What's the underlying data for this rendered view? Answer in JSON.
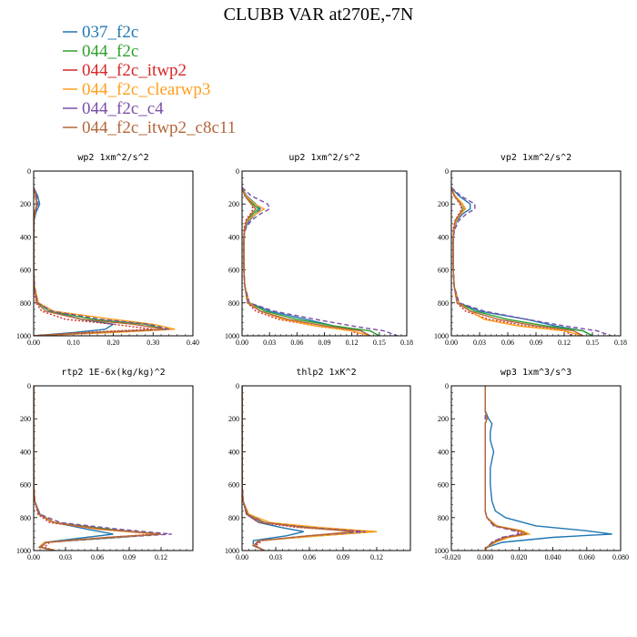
{
  "title": "CLUBB VAR at270E,-7N",
  "legend": [
    {
      "label": "037_f2c",
      "color": "#1f77b4",
      "dash": "solid"
    },
    {
      "label": "044_f2c",
      "color": "#2ca02c",
      "dash": "solid"
    },
    {
      "label": "044_f2c_itwp2",
      "color": "#d62728",
      "dash": "dotted"
    },
    {
      "label": "044_f2c_clearwp3",
      "color": "#ff9f1c",
      "dash": "solid"
    },
    {
      "label": "044_f2c_c4",
      "color": "#7b4fa8",
      "dash": "dashed"
    },
    {
      "label": "044_f2c_itwp2_c8c11",
      "color": "#b5663a",
      "dash": "solid"
    }
  ],
  "chart_data": [
    {
      "type": "line",
      "title": "wp2  1xm^2/s^2",
      "xlim": [
        0,
        0.4
      ],
      "ylim": [
        0,
        1000
      ],
      "y_inverted": true,
      "xticks": [
        "0.00",
        "0.10",
        "0.20",
        "0.30",
        "0.40"
      ],
      "yticks": [
        "0",
        "200",
        "400",
        "600",
        "800",
        "1000"
      ],
      "y": [
        100,
        150,
        200,
        250,
        300,
        400,
        500,
        600,
        700,
        800,
        850,
        900,
        930,
        960,
        980,
        1000
      ],
      "series": [
        {
          "name": "037_f2c",
          "x": [
            0,
            0.01,
            0.015,
            0.006,
            0.001,
            0,
            0,
            0,
            0.002,
            0.01,
            0.04,
            0.12,
            0.2,
            0.18,
            0.1,
            0
          ]
        },
        {
          "name": "044_f2c",
          "x": [
            0,
            0.006,
            0.009,
            0.004,
            0.001,
            0,
            0,
            0,
            0.002,
            0.01,
            0.04,
            0.15,
            0.28,
            0.33,
            0.15,
            0
          ]
        },
        {
          "name": "044_f2c_itwp2",
          "x": [
            0,
            0.004,
            0.007,
            0.003,
            0.001,
            0,
            0,
            0,
            0.001,
            0.006,
            0.02,
            0.08,
            0.2,
            0.3,
            0.12,
            0
          ]
        },
        {
          "name": "044_f2c_clearwp3",
          "x": [
            0,
            0.005,
            0.008,
            0.003,
            0.001,
            0,
            0,
            0,
            0.002,
            0.012,
            0.05,
            0.2,
            0.3,
            0.355,
            0.2,
            0
          ]
        },
        {
          "name": "044_f2c_c4",
          "x": [
            0,
            0.008,
            0.011,
            0.004,
            0.001,
            0,
            0,
            0,
            0.002,
            0.01,
            0.045,
            0.17,
            0.29,
            0.34,
            0.16,
            0
          ]
        },
        {
          "name": "044_f2c_itwp2_c8c11",
          "x": [
            0,
            0.005,
            0.008,
            0.003,
            0.001,
            0,
            0,
            0,
            0.001,
            0.008,
            0.03,
            0.12,
            0.25,
            0.33,
            0.14,
            0
          ]
        }
      ]
    },
    {
      "type": "line",
      "title": "up2  1xm^2/s^2",
      "xlim": [
        0,
        0.18
      ],
      "ylim": [
        0,
        1000
      ],
      "y_inverted": true,
      "xticks": [
        "0.00",
        "0.03",
        "0.06",
        "0.09",
        "0.12",
        "0.15",
        "0.18"
      ],
      "yticks": [
        "0",
        "200",
        "400",
        "600",
        "800",
        "1000"
      ],
      "y": [
        100,
        150,
        200,
        230,
        260,
        300,
        350,
        400,
        500,
        600,
        700,
        800,
        850,
        900,
        940,
        970,
        1000
      ],
      "series": [
        {
          "name": "037_f2c",
          "x": [
            0,
            0.005,
            0.015,
            0.02,
            0.015,
            0.008,
            0.003,
            0.002,
            0.002,
            0.002,
            0.003,
            0.008,
            0.03,
            0.07,
            0.1,
            0.13,
            0.14
          ]
        },
        {
          "name": "044_f2c",
          "x": [
            0,
            0.004,
            0.012,
            0.018,
            0.012,
            0.006,
            0.003,
            0.002,
            0.002,
            0.002,
            0.003,
            0.008,
            0.025,
            0.06,
            0.1,
            0.14,
            0.15
          ]
        },
        {
          "name": "044_f2c_itwp2",
          "x": [
            0,
            0.003,
            0.01,
            0.012,
            0.009,
            0.004,
            0.002,
            0.002,
            0.002,
            0.002,
            0.003,
            0.006,
            0.015,
            0.04,
            0.08,
            0.12,
            0.13
          ]
        },
        {
          "name": "044_f2c_clearwp3",
          "x": [
            0,
            0.004,
            0.014,
            0.024,
            0.015,
            0.006,
            0.003,
            0.002,
            0.002,
            0.002,
            0.003,
            0.008,
            0.02,
            0.045,
            0.08,
            0.12,
            0.14
          ]
        },
        {
          "name": "044_f2c_c4",
          "x": [
            0,
            0.01,
            0.028,
            0.03,
            0.02,
            0.01,
            0.004,
            0.002,
            0.002,
            0.002,
            0.003,
            0.008,
            0.035,
            0.08,
            0.12,
            0.155,
            0.17
          ]
        },
        {
          "name": "044_f2c_itwp2_c8c11",
          "x": [
            0,
            0.003,
            0.01,
            0.015,
            0.01,
            0.005,
            0.003,
            0.002,
            0.002,
            0.002,
            0.003,
            0.006,
            0.02,
            0.05,
            0.09,
            0.13,
            0.14
          ]
        }
      ]
    },
    {
      "type": "line",
      "title": "vp2  1xm^2/s^2",
      "xlim": [
        0,
        0.18
      ],
      "ylim": [
        0,
        1000
      ],
      "y_inverted": true,
      "xticks": [
        "0.00",
        "0.03",
        "0.06",
        "0.09",
        "0.12",
        "0.15",
        "0.18"
      ],
      "yticks": [
        "0",
        "200",
        "400",
        "600",
        "800",
        "1000"
      ],
      "y": [
        100,
        150,
        200,
        230,
        260,
        300,
        350,
        400,
        500,
        600,
        700,
        800,
        850,
        900,
        940,
        970,
        1000
      ],
      "series": [
        {
          "name": "037_f2c",
          "x": [
            0,
            0.008,
            0.02,
            0.02,
            0.012,
            0.006,
            0.003,
            0.002,
            0.002,
            0.002,
            0.003,
            0.008,
            0.03,
            0.08,
            0.11,
            0.14,
            0.15
          ]
        },
        {
          "name": "044_f2c",
          "x": [
            0,
            0.004,
            0.012,
            0.014,
            0.01,
            0.005,
            0.003,
            0.002,
            0.002,
            0.002,
            0.003,
            0.008,
            0.025,
            0.06,
            0.1,
            0.14,
            0.15
          ]
        },
        {
          "name": "044_f2c_itwp2",
          "x": [
            0,
            0.003,
            0.009,
            0.011,
            0.008,
            0.004,
            0.002,
            0.002,
            0.002,
            0.002,
            0.003,
            0.006,
            0.015,
            0.04,
            0.08,
            0.12,
            0.13
          ]
        },
        {
          "name": "044_f2c_clearwp3",
          "x": [
            0,
            0.004,
            0.012,
            0.015,
            0.01,
            0.005,
            0.003,
            0.002,
            0.002,
            0.002,
            0.003,
            0.008,
            0.02,
            0.035,
            0.07,
            0.12,
            0.14
          ]
        },
        {
          "name": "044_f2c_c4",
          "x": [
            0,
            0.01,
            0.025,
            0.025,
            0.016,
            0.008,
            0.004,
            0.002,
            0.002,
            0.002,
            0.003,
            0.008,
            0.035,
            0.08,
            0.12,
            0.155,
            0.17
          ]
        },
        {
          "name": "044_f2c_itwp2_c8c11",
          "x": [
            0,
            0.003,
            0.01,
            0.012,
            0.009,
            0.004,
            0.003,
            0.002,
            0.002,
            0.002,
            0.003,
            0.006,
            0.02,
            0.05,
            0.09,
            0.13,
            0.14
          ]
        }
      ]
    },
    {
      "type": "line",
      "title": "rtp2  1E-6x(kg/kg)^2",
      "xlim": [
        0,
        0.15
      ],
      "ylim": [
        0,
        1000
      ],
      "y_inverted": true,
      "xticks": [
        "0.00",
        "0.03",
        "0.06",
        "0.09",
        "0.12"
      ],
      "yticks": [
        "0",
        "200",
        "400",
        "600",
        "800",
        "1000"
      ],
      "y": [
        0,
        200,
        400,
        600,
        700,
        780,
        830,
        870,
        900,
        920,
        950,
        980,
        1000
      ],
      "series": [
        {
          "name": "037_f2c",
          "x": [
            0,
            0,
            0,
            0,
            0.001,
            0.006,
            0.02,
            0.05,
            0.075,
            0.05,
            0.01,
            0.007,
            0.02
          ]
        },
        {
          "name": "044_f2c",
          "x": [
            0,
            0,
            0,
            0,
            0.001,
            0.005,
            0.02,
            0.07,
            0.12,
            0.08,
            0.01,
            0.005,
            0.02
          ]
        },
        {
          "name": "044_f2c_itwp2",
          "x": [
            0,
            0,
            0,
            0,
            0.001,
            0.004,
            0.015,
            0.06,
            0.115,
            0.07,
            0.015,
            0.01,
            0.02
          ]
        },
        {
          "name": "044_f2c_clearwp3",
          "x": [
            0,
            0,
            0,
            0,
            0.001,
            0.005,
            0.02,
            0.06,
            0.12,
            0.07,
            0.01,
            0.005,
            0.02
          ]
        },
        {
          "name": "044_f2c_c4",
          "x": [
            0,
            0,
            0,
            0,
            0.001,
            0.006,
            0.025,
            0.08,
            0.13,
            0.08,
            0.012,
            0.006,
            0.02
          ]
        },
        {
          "name": "044_f2c_itwp2_c8c11",
          "x": [
            0,
            0,
            0,
            0,
            0.001,
            0.005,
            0.018,
            0.065,
            0.12,
            0.07,
            0.012,
            0.007,
            0.02
          ]
        }
      ]
    },
    {
      "type": "line",
      "title": "thlp2  1xK^2",
      "xlim": [
        0,
        0.15
      ],
      "ylim": [
        0,
        1000
      ],
      "y_inverted": true,
      "xticks": [
        "0.00",
        "0.03",
        "0.06",
        "0.09",
        "0.12"
      ],
      "yticks": [
        "0",
        "200",
        "400",
        "600",
        "800",
        "1000"
      ],
      "y": [
        0,
        200,
        400,
        600,
        700,
        780,
        830,
        860,
        885,
        910,
        940,
        970,
        1000
      ],
      "series": [
        {
          "name": "037_f2c",
          "x": [
            0,
            0,
            0,
            0,
            0.001,
            0.004,
            0.015,
            0.035,
            0.055,
            0.04,
            0.01,
            0.01,
            0.02
          ]
        },
        {
          "name": "044_f2c",
          "x": [
            0,
            0,
            0,
            0,
            0.001,
            0.005,
            0.02,
            0.06,
            0.12,
            0.07,
            0.015,
            0.01,
            0.02
          ]
        },
        {
          "name": "044_f2c_itwp2",
          "x": [
            0,
            0,
            0,
            0,
            0.001,
            0.004,
            0.015,
            0.05,
            0.11,
            0.06,
            0.018,
            0.012,
            0.02
          ]
        },
        {
          "name": "044_f2c_clearwp3",
          "x": [
            0,
            0,
            0,
            0,
            0.001,
            0.006,
            0.025,
            0.07,
            0.12,
            0.07,
            0.015,
            0.01,
            0.02
          ]
        },
        {
          "name": "044_f2c_c4",
          "x": [
            0,
            0,
            0,
            0,
            0.001,
            0.005,
            0.02,
            0.06,
            0.11,
            0.06,
            0.015,
            0.01,
            0.02
          ]
        },
        {
          "name": "044_f2c_itwp2_c8c11",
          "x": [
            0,
            0,
            0,
            0,
            0.001,
            0.005,
            0.018,
            0.055,
            0.1,
            0.06,
            0.016,
            0.011,
            0.02
          ]
        }
      ]
    },
    {
      "type": "line",
      "title": "wp3  1xm^3/s^3",
      "xlim": [
        -0.02,
        0.08
      ],
      "ylim": [
        0,
        1000
      ],
      "y_inverted": true,
      "xticks": [
        "-0.020",
        "0.000",
        "0.020",
        "0.040",
        "0.060",
        "0.080"
      ],
      "yticks": [
        "0",
        "200",
        "400",
        "600",
        "800",
        "1000"
      ],
      "y": [
        0,
        150,
        200,
        230,
        280,
        330,
        400,
        450,
        500,
        600,
        700,
        760,
        800,
        850,
        880,
        900,
        920,
        950,
        980,
        1000
      ],
      "series": [
        {
          "name": "037_f2c",
          "x": [
            0,
            0,
            0.002,
            0.004,
            0.003,
            0.003,
            0.005,
            0.004,
            0.003,
            0.003,
            0.004,
            0.006,
            0.012,
            0.03,
            0.06,
            0.075,
            0.04,
            0.01,
            0.001,
            0
          ]
        },
        {
          "name": "044_f2c",
          "x": [
            0,
            0,
            0.001,
            0,
            0,
            0,
            0,
            0,
            0,
            0,
            0,
            0,
            0.001,
            0.006,
            0.02,
            0.025,
            0.012,
            0.005,
            0.001,
            0
          ]
        },
        {
          "name": "044_f2c_itwp2",
          "x": [
            0,
            0,
            0.001,
            0,
            0,
            0,
            0,
            0,
            0,
            0,
            0,
            0,
            0.001,
            0.005,
            0.018,
            0.022,
            0.01,
            0.004,
            0.001,
            0
          ]
        },
        {
          "name": "044_f2c_clearwp3",
          "x": [
            0,
            0,
            0.001,
            0,
            0,
            0,
            0,
            0,
            0,
            0,
            0,
            0,
            0.001,
            0.007,
            0.022,
            0.026,
            0.014,
            0.006,
            0.001,
            0
          ]
        },
        {
          "name": "044_f2c_c4",
          "x": [
            0,
            0,
            0,
            0,
            0,
            0,
            0,
            0,
            0,
            0,
            0,
            0,
            0.001,
            0.005,
            0.017,
            0.02,
            0.01,
            0.004,
            0.001,
            0
          ]
        },
        {
          "name": "044_f2c_itwp2_c8c11",
          "x": [
            0,
            0,
            0.001,
            0,
            0,
            0,
            0,
            0,
            0,
            0,
            0,
            0,
            0.001,
            0.006,
            0.02,
            0.024,
            0.012,
            0.005,
            0.001,
            0
          ]
        }
      ]
    }
  ]
}
